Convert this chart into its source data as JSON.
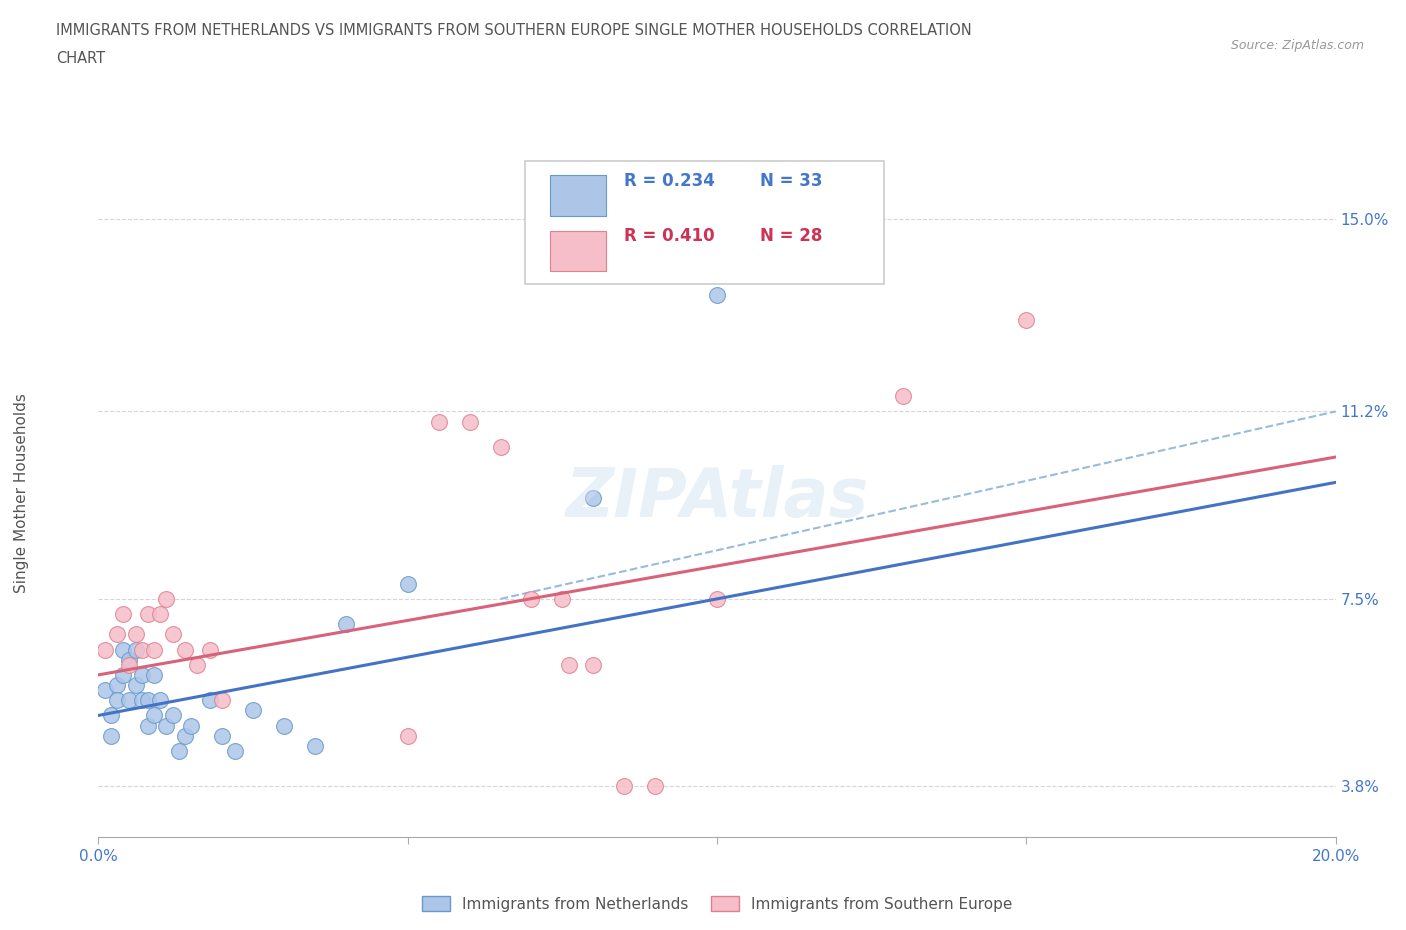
{
  "title_line1": "IMMIGRANTS FROM NETHERLANDS VS IMMIGRANTS FROM SOUTHERN EUROPE SINGLE MOTHER HOUSEHOLDS CORRELATION",
  "title_line2": "CHART",
  "source_text": "Source: ZipAtlas.com",
  "ylabel": "Single Mother Households",
  "xlim": [
    0.0,
    0.2
  ],
  "ylim": [
    0.028,
    0.162
  ],
  "xticks": [
    0.0,
    0.05,
    0.1,
    0.15,
    0.2
  ],
  "xtick_labels": [
    "0.0%",
    "",
    "",
    "",
    "20.0%"
  ],
  "ytick_positions": [
    0.038,
    0.075,
    0.112,
    0.15
  ],
  "ytick_labels": [
    "3.8%",
    "7.5%",
    "11.2%",
    "15.0%"
  ],
  "netherlands_color": "#adc6e8",
  "netherlands_edge_color": "#6699cc",
  "southern_europe_color": "#f5bec8",
  "southern_europe_edge_color": "#e08090",
  "trend_netherlands_color": "#4472c4",
  "trend_southern_color": "#d9627a",
  "trend_dashed_color": "#99bbdd",
  "watermark": "ZIPAtlas",
  "nl_x": [
    0.001,
    0.002,
    0.002,
    0.003,
    0.003,
    0.004,
    0.004,
    0.005,
    0.005,
    0.006,
    0.006,
    0.007,
    0.007,
    0.008,
    0.008,
    0.009,
    0.009,
    0.01,
    0.011,
    0.012,
    0.013,
    0.014,
    0.015,
    0.018,
    0.02,
    0.022,
    0.025,
    0.03,
    0.035,
    0.04,
    0.05,
    0.08,
    0.1
  ],
  "nl_y": [
    0.057,
    0.052,
    0.048,
    0.058,
    0.055,
    0.06,
    0.065,
    0.055,
    0.063,
    0.058,
    0.065,
    0.055,
    0.06,
    0.05,
    0.055,
    0.06,
    0.052,
    0.055,
    0.05,
    0.052,
    0.045,
    0.048,
    0.05,
    0.055,
    0.048,
    0.045,
    0.053,
    0.05,
    0.046,
    0.07,
    0.078,
    0.095,
    0.135
  ],
  "se_x": [
    0.001,
    0.003,
    0.004,
    0.005,
    0.006,
    0.007,
    0.008,
    0.009,
    0.01,
    0.011,
    0.012,
    0.014,
    0.016,
    0.018,
    0.02,
    0.05,
    0.055,
    0.06,
    0.065,
    0.07,
    0.075,
    0.076,
    0.08,
    0.085,
    0.09,
    0.1,
    0.13,
    0.15
  ],
  "se_y": [
    0.065,
    0.068,
    0.072,
    0.062,
    0.068,
    0.065,
    0.072,
    0.065,
    0.072,
    0.075,
    0.068,
    0.065,
    0.062,
    0.065,
    0.055,
    0.048,
    0.11,
    0.11,
    0.105,
    0.075,
    0.075,
    0.062,
    0.062,
    0.038,
    0.038,
    0.075,
    0.115,
    0.13
  ],
  "marker_size": 130,
  "background_color": "#ffffff",
  "grid_color": "#cccccc",
  "nl_trend_x0": 0.0,
  "nl_trend_y0": 0.052,
  "nl_trend_x1": 0.2,
  "nl_trend_y1": 0.098,
  "se_trend_x0": 0.0,
  "se_trend_y0": 0.06,
  "se_trend_x1": 0.2,
  "se_trend_y1": 0.103,
  "dash_trend_x0": 0.065,
  "dash_trend_y0": 0.075,
  "dash_trend_x1": 0.2,
  "dash_trend_y1": 0.112
}
